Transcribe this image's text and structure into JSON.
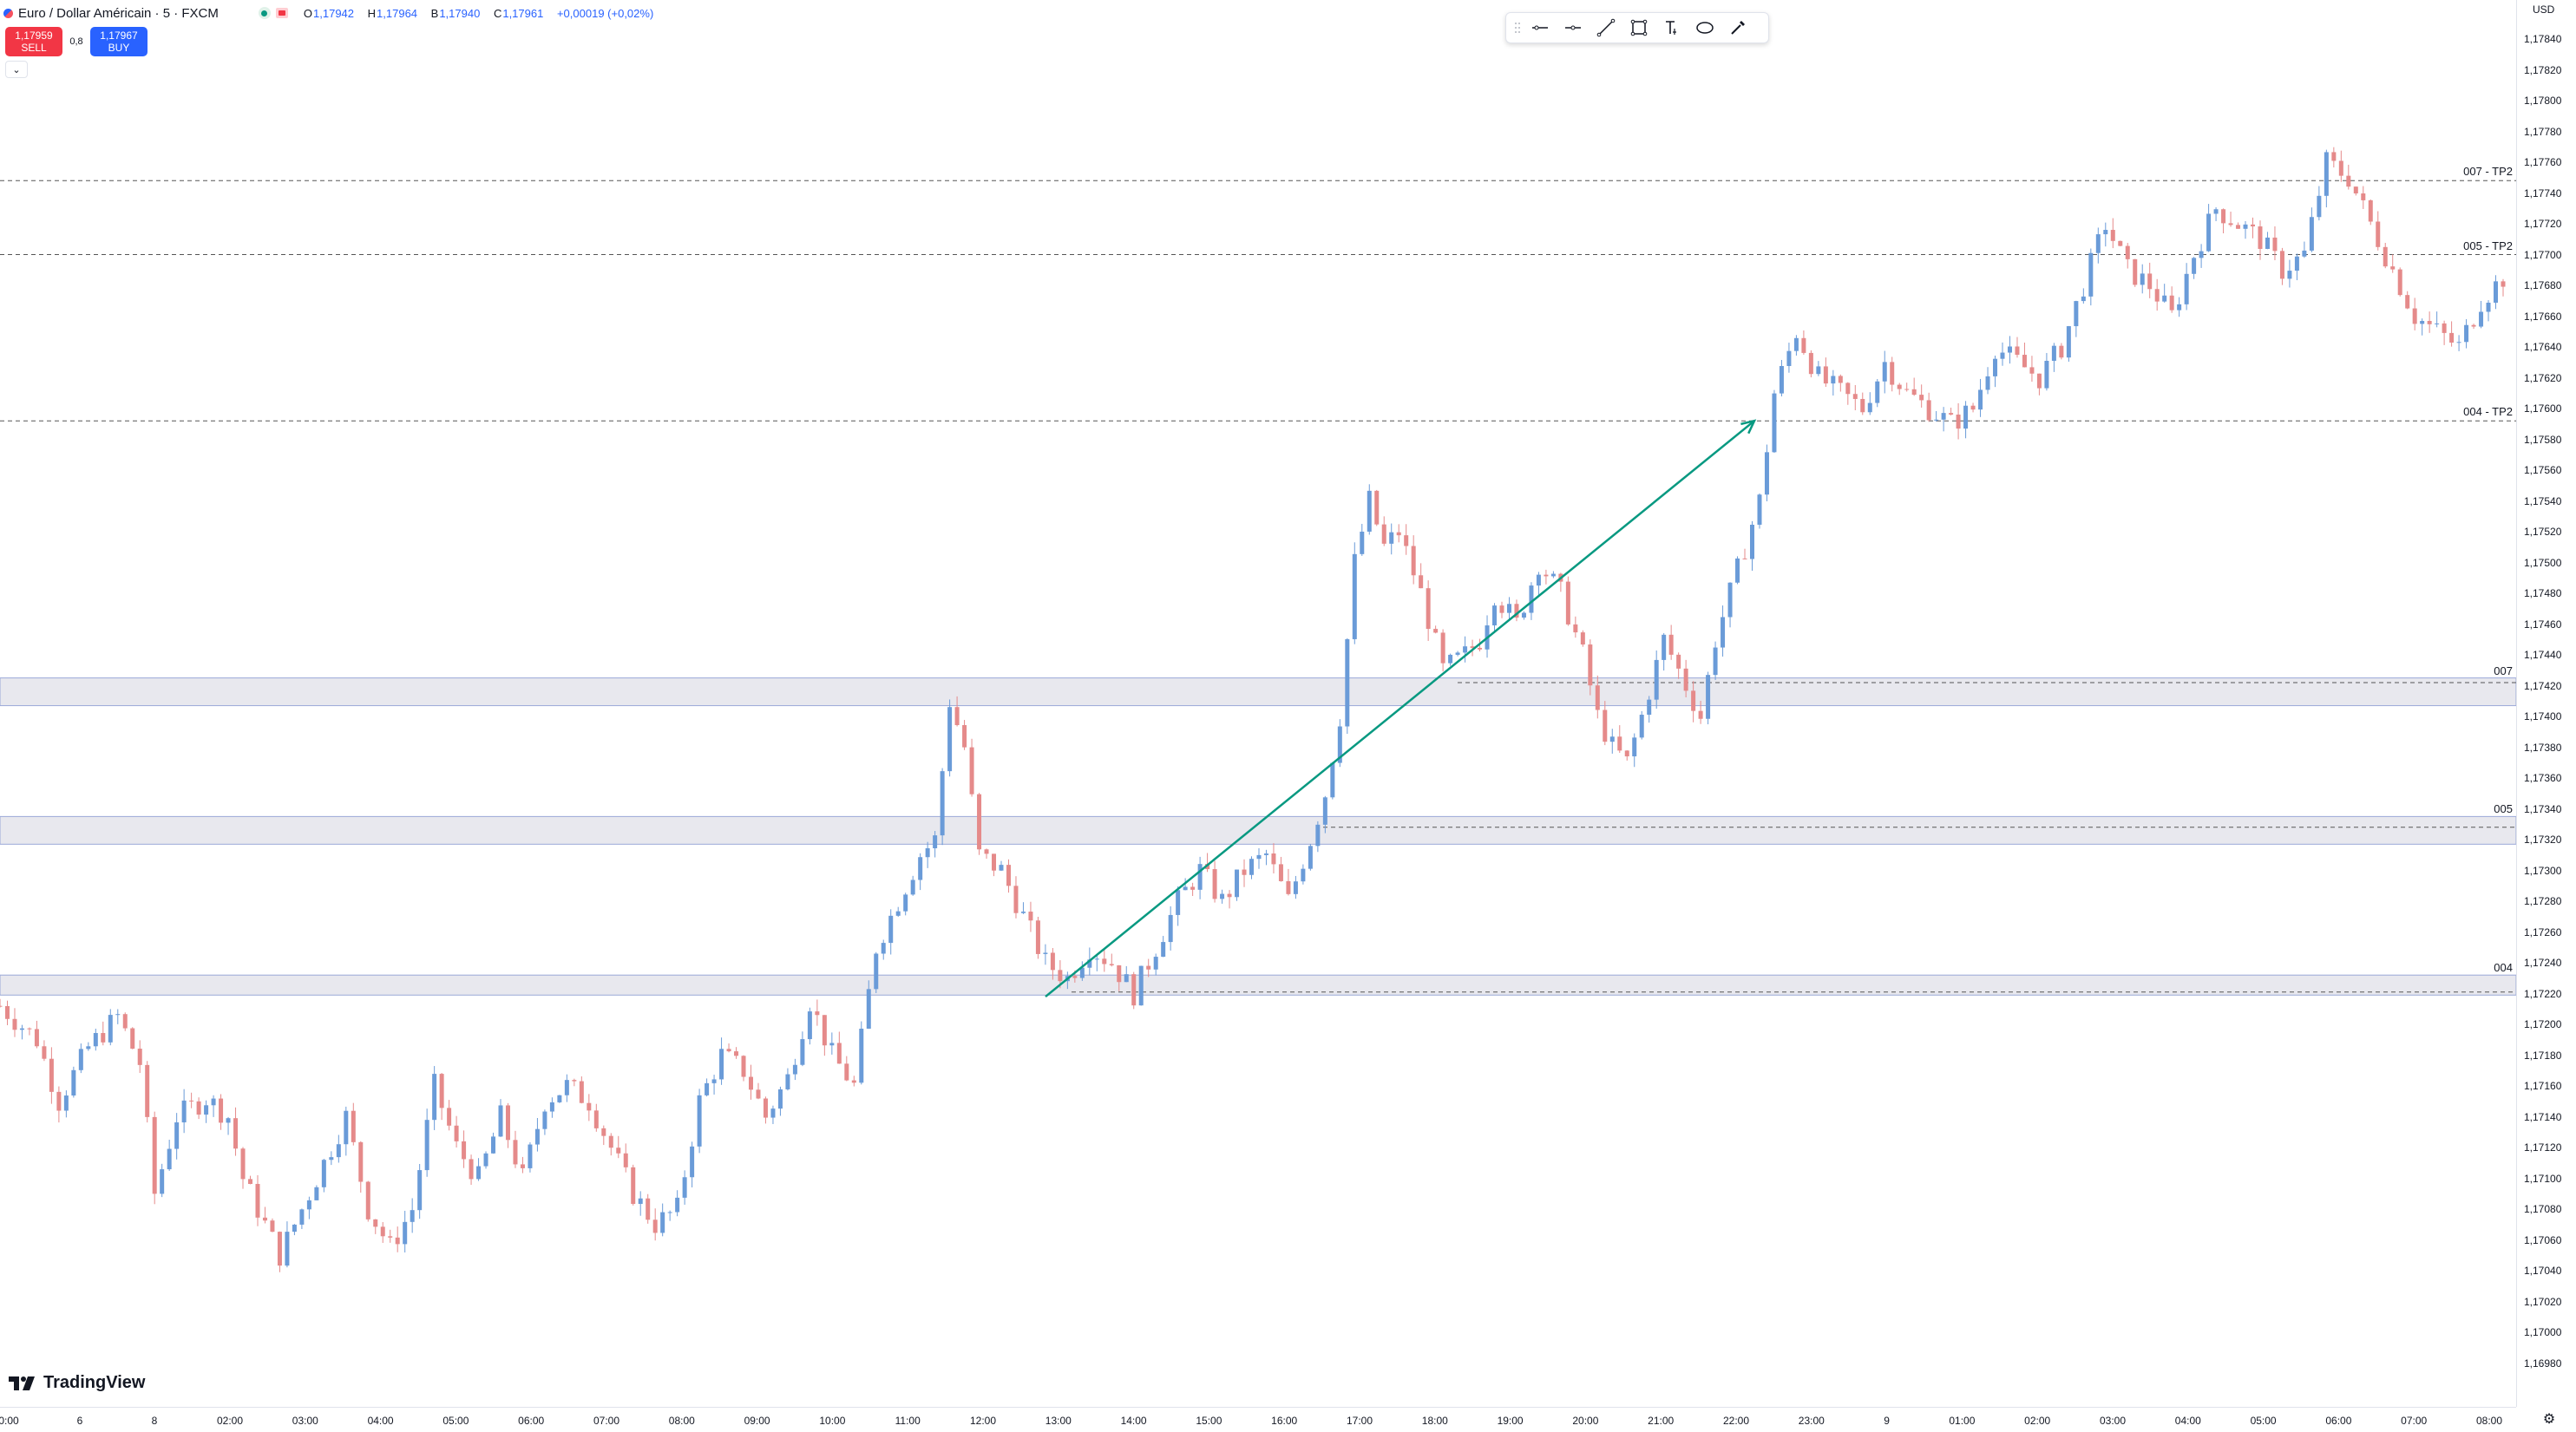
{
  "legend": {
    "title": "Euro / Dollar Américain · 5 · FXCM",
    "ohlc": [
      {
        "k": "O",
        "v": "1,17942"
      },
      {
        "k": "H",
        "v": "1,17964"
      },
      {
        "k": "B",
        "v": "1,17940"
      },
      {
        "k": "C",
        "v": "1,17961"
      },
      {
        "k": "",
        "v": "+0,00019 (+0,02%)"
      }
    ]
  },
  "trade": {
    "sell_price": "1,17959",
    "sell_label": "SELL",
    "spread": "0,8",
    "buy_price": "1,17967",
    "buy_label": "BUY"
  },
  "toolbar": {
    "items": [
      "horizontal-line",
      "horizontal-ray",
      "trend-line",
      "rectangle",
      "text",
      "ellipse",
      "brush"
    ]
  },
  "price_axis": {
    "currency": "USD",
    "labels": [
      "1,17840",
      "1,17820",
      "1,17800",
      "1,17780",
      "1,17760",
      "1,17740",
      "1,17720",
      "1,17700",
      "1,17680",
      "1,17660",
      "1,17640",
      "1,17620",
      "1,17600",
      "1,17580",
      "1,17560",
      "1,17540",
      "1,17520",
      "1,17500",
      "1,17480",
      "1,17460",
      "1,17440",
      "1,17420",
      "1,17400",
      "1,17380",
      "1,17360",
      "1,17340",
      "1,17320",
      "1,17300",
      "1,17280",
      "1,17260",
      "1,17240",
      "1,17220",
      "1,17200",
      "1,17180",
      "1,17160",
      "1,17140",
      "1,17120",
      "1,17100",
      "1,17080",
      "1,17060",
      "1,17040",
      "1,17020",
      "1,17000",
      "1,16980"
    ]
  },
  "time_axis": {
    "labels": [
      "0:00",
      "6",
      "8",
      "02:00",
      "03:00",
      "04:00",
      "05:00",
      "06:00",
      "07:00",
      "08:00",
      "09:00",
      "10:00",
      "11:00",
      "12:00",
      "13:00",
      "14:00",
      "15:00",
      "16:00",
      "17:00",
      "18:00",
      "19:00",
      "20:00",
      "21:00",
      "22:00",
      "23:00",
      "9",
      "01:00",
      "02:00",
      "03:00",
      "04:00",
      "05:00",
      "06:00",
      "07:00",
      "08:00"
    ]
  },
  "levels": [
    {
      "label": "007 - TP2",
      "price": 1.17748
    },
    {
      "label": "005 - TP2",
      "price": 1.177
    },
    {
      "label": "004 - TP2",
      "price": 1.17592
    }
  ],
  "zones": [
    {
      "label": "007",
      "top": 1.17425,
      "bottom": 1.17407,
      "line": 1.17422
    },
    {
      "label": "005",
      "top": 1.17335,
      "bottom": 1.17317,
      "line": 1.17328
    },
    {
      "label": "004",
      "top": 1.17232,
      "bottom": 1.17219,
      "line": 1.17221
    }
  ],
  "branding": {
    "logo_text": "TradingView"
  },
  "colors": {
    "up": "#6a9bd8",
    "down": "#e58a8a",
    "arrow": "#089981",
    "zone_fill": "#e8e8ee",
    "zone_border": "#9aa8d8",
    "level_line": "#555555"
  },
  "chart_data": {
    "type": "candlestick",
    "ylim": [
      1.1697,
      1.1785
    ],
    "xlim": [
      0,
      340
    ],
    "candles_anchors": [
      [
        0,
        1.17212
      ],
      [
        5,
        1.1719
      ],
      [
        8,
        1.1715
      ],
      [
        12,
        1.17185
      ],
      [
        16,
        1.17205
      ],
      [
        19,
        1.17175
      ],
      [
        21,
        1.1709
      ],
      [
        24,
        1.1714
      ],
      [
        28,
        1.17152
      ],
      [
        31,
        1.1714
      ],
      [
        33,
        1.171
      ],
      [
        36,
        1.1707
      ],
      [
        38,
        1.1705
      ],
      [
        41,
        1.1708
      ],
      [
        44,
        1.1711
      ],
      [
        47,
        1.1714
      ],
      [
        50,
        1.1708
      ],
      [
        53,
        1.17055
      ],
      [
        56,
        1.1708
      ],
      [
        59,
        1.1716
      ],
      [
        62,
        1.1712
      ],
      [
        65,
        1.171
      ],
      [
        68,
        1.1714
      ],
      [
        71,
        1.171
      ],
      [
        74,
        1.1715
      ],
      [
        77,
        1.1716
      ],
      [
        80,
        1.1715
      ],
      [
        83,
        1.1712
      ],
      [
        86,
        1.1709
      ],
      [
        89,
        1.1707
      ],
      [
        92,
        1.1708
      ],
      [
        95,
        1.1715
      ],
      [
        98,
        1.1718
      ],
      [
        101,
        1.1717
      ],
      [
        104,
        1.1714
      ],
      [
        107,
        1.17165
      ],
      [
        110,
        1.17215
      ],
      [
        113,
        1.1718
      ],
      [
        116,
        1.1716
      ],
      [
        119,
        1.1725
      ],
      [
        122,
        1.1728
      ],
      [
        125,
        1.1731
      ],
      [
        127,
        1.1732
      ],
      [
        129,
        1.1741
      ],
      [
        131,
        1.1738
      ],
      [
        133,
        1.1731
      ],
      [
        136,
        1.173
      ],
      [
        139,
        1.1727
      ],
      [
        142,
        1.1724
      ],
      [
        145,
        1.1723
      ],
      [
        148,
        1.1725
      ],
      [
        151,
        1.1724
      ],
      [
        154,
        1.1722
      ],
      [
        157,
        1.1725
      ],
      [
        160,
        1.1728
      ],
      [
        163,
        1.173
      ],
      [
        166,
        1.1728
      ],
      [
        169,
        1.173
      ],
      [
        172,
        1.1731
      ],
      [
        175,
        1.1728
      ],
      [
        178,
        1.1732
      ],
      [
        180,
        1.1735
      ],
      [
        182,
        1.174
      ],
      [
        184,
        1.175
      ],
      [
        186,
        1.1754
      ],
      [
        188,
        1.1751
      ],
      [
        190,
        1.1752
      ],
      [
        193,
        1.1748
      ],
      [
        196,
        1.1743
      ],
      [
        199,
        1.1744
      ],
      [
        201,
        1.1745
      ],
      [
        203,
        1.1748
      ],
      [
        206,
        1.1746
      ],
      [
        209,
        1.175
      ],
      [
        212,
        1.1748
      ],
      [
        215,
        1.1744
      ],
      [
        217,
        1.174
      ],
      [
        219,
        1.1738
      ],
      [
        221,
        1.1737
      ],
      [
        223,
        1.174
      ],
      [
        226,
        1.1745
      ],
      [
        229,
        1.1742
      ],
      [
        231,
        1.174
      ],
      [
        233,
        1.1745
      ],
      [
        235,
        1.1748
      ],
      [
        237,
        1.1751
      ],
      [
        239,
        1.1754
      ],
      [
        241,
        1.1761
      ],
      [
        244,
        1.1765
      ],
      [
        247,
        1.1762
      ],
      [
        250,
        1.1761
      ],
      [
        253,
        1.176
      ],
      [
        256,
        1.1763
      ],
      [
        259,
        1.1761
      ],
      [
        262,
        1.176
      ],
      [
        265,
        1.1759
      ],
      [
        268,
        1.176
      ],
      [
        271,
        1.1764
      ],
      [
        274,
        1.1763
      ],
      [
        277,
        1.1762
      ],
      [
        280,
        1.1764
      ],
      [
        283,
        1.1768
      ],
      [
        286,
        1.1772
      ],
      [
        289,
        1.1769
      ],
      [
        292,
        1.1768
      ],
      [
        295,
        1.1766
      ],
      [
        298,
        1.177
      ],
      [
        301,
        1.1773
      ],
      [
        304,
        1.1772
      ],
      [
        307,
        1.1771
      ],
      [
        310,
        1.1769
      ],
      [
        313,
        1.177
      ],
      [
        316,
        1.1776
      ],
      [
        319,
        1.1775
      ],
      [
        322,
        1.1772
      ],
      [
        325,
        1.1769
      ],
      [
        328,
        1.1766
      ],
      [
        331,
        1.1765
      ],
      [
        334,
        1.1764
      ],
      [
        337,
        1.1767
      ],
      [
        340,
        1.17685
      ]
    ],
    "trend_arrow": {
      "from": [
        154,
        1.17218
      ],
      "to": [
        242,
        1.17592
      ]
    }
  }
}
